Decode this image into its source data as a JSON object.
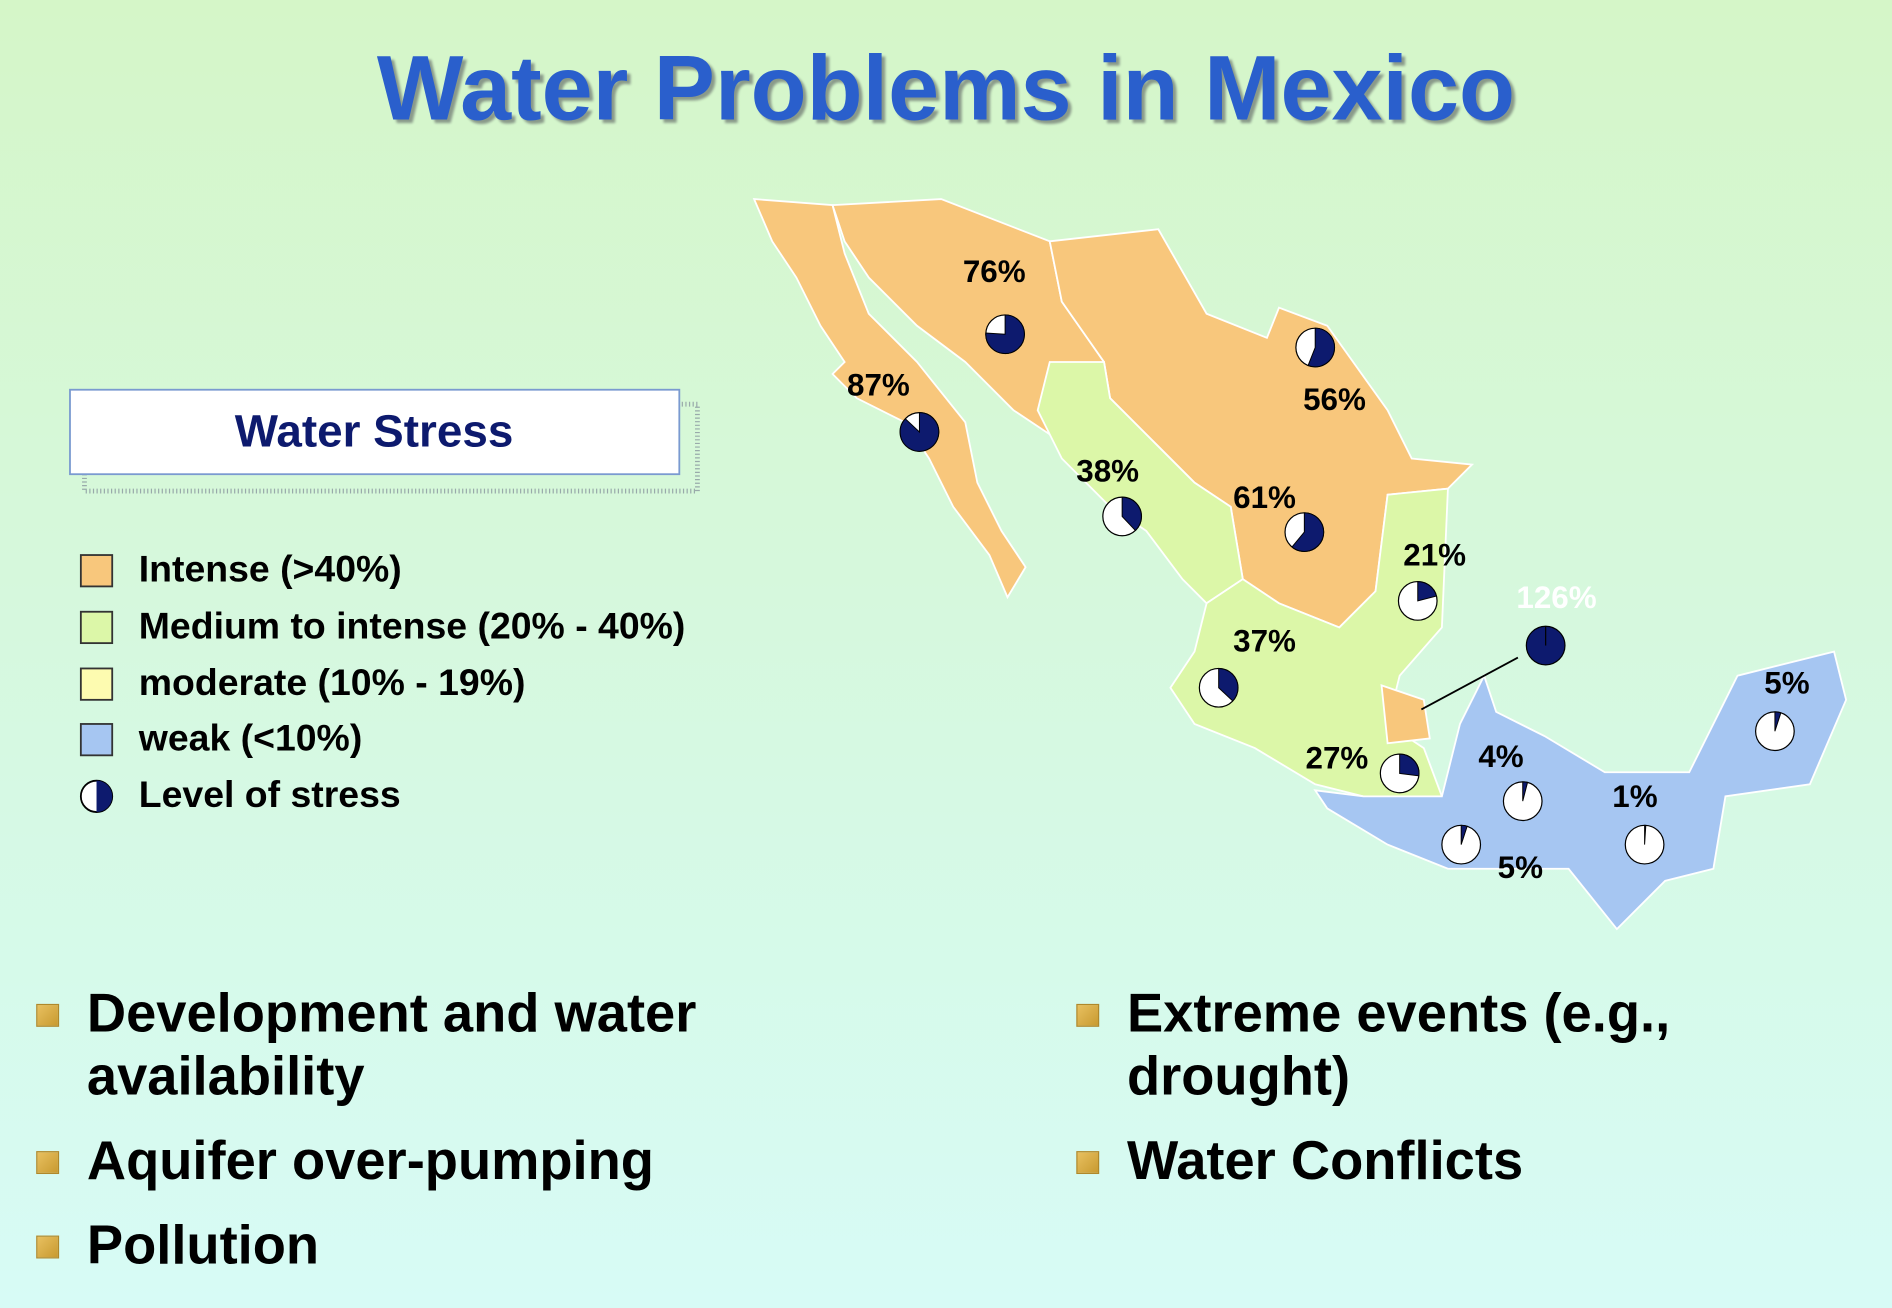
{
  "title": "Water Problems in Mexico",
  "legend": {
    "title": "Water Stress",
    "items": [
      {
        "label": "Intense (>40%)",
        "color": "#f8c77c"
      },
      {
        "label": "Medium to intense (20% - 40%)",
        "color": "#dcf7a8"
      },
      {
        "label": "moderate (10% - 19%)",
        "color": "#fdfbb0"
      },
      {
        "label": "weak (<10%)",
        "color": "#a6c6f2"
      },
      {
        "label": "Level of stress"
      }
    ]
  },
  "stress_color": "#0d1a6e",
  "regions": [
    {
      "value": 76,
      "value_label": "76%",
      "label_color": "#000000"
    },
    {
      "value": 87,
      "value_label": "87%",
      "label_color": "#000000"
    },
    {
      "value": 56,
      "value_label": "56%",
      "label_color": "#000000"
    },
    {
      "value": 38,
      "value_label": "38%",
      "label_color": "#000000"
    },
    {
      "value": 61,
      "value_label": "61%",
      "label_color": "#000000"
    },
    {
      "value": 21,
      "value_label": "21%",
      "label_color": "#000000"
    },
    {
      "value": 126,
      "value_label": "126%",
      "label_color": "#ffffff"
    },
    {
      "value": 37,
      "value_label": "37%",
      "label_color": "#000000"
    },
    {
      "value": 27,
      "value_label": "27%",
      "label_color": "#000000"
    },
    {
      "value": 4,
      "value_label": "4%",
      "label_color": "#000000"
    },
    {
      "value": 5,
      "value_label": "5%",
      "label_color": "#000000"
    },
    {
      "value": 1,
      "value_label": "1%",
      "label_color": "#000000"
    },
    {
      "value": 5,
      "value_label": "5%",
      "label_color": "#000000"
    }
  ],
  "bullets": {
    "left": [
      "Development and water availability",
      "Aquifer over-pumping",
      "Pollution"
    ],
    "right": [
      "Extreme events (e.g., drought)",
      "Water Conflicts"
    ]
  }
}
